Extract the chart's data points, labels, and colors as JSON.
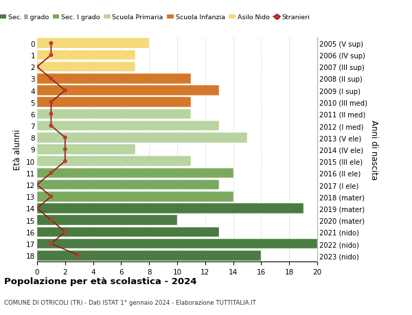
{
  "ages": [
    18,
    17,
    16,
    15,
    14,
    13,
    12,
    11,
    10,
    9,
    8,
    7,
    6,
    5,
    4,
    3,
    2,
    1,
    0
  ],
  "right_labels": [
    "2005 (V sup)",
    "2006 (IV sup)",
    "2007 (III sup)",
    "2008 (II sup)",
    "2009 (I sup)",
    "2010 (III med)",
    "2011 (II med)",
    "2012 (I med)",
    "2013 (V ele)",
    "2014 (IV ele)",
    "2015 (III ele)",
    "2016 (II ele)",
    "2017 (I ele)",
    "2018 (mater)",
    "2019 (mater)",
    "2020 (mater)",
    "2021 (nido)",
    "2022 (nido)",
    "2023 (nido)"
  ],
  "bar_values": [
    16,
    20,
    13,
    10,
    19,
    14,
    13,
    14,
    11,
    7,
    15,
    13,
    11,
    11,
    13,
    11,
    7,
    7,
    8
  ],
  "stranieri_values": [
    3,
    1,
    2,
    1,
    0,
    1,
    0,
    1,
    2,
    2,
    2,
    1,
    1,
    1,
    2,
    1,
    0,
    1,
    1
  ],
  "bar_colors": [
    "#4a7c41",
    "#4a7c41",
    "#4a7c41",
    "#4a7c41",
    "#4a7c41",
    "#7aaa5e",
    "#7aaa5e",
    "#7aaa5e",
    "#b8d4a0",
    "#b8d4a0",
    "#b8d4a0",
    "#b8d4a0",
    "#b8d4a0",
    "#d4782a",
    "#d4782a",
    "#d4782a",
    "#f5d97a",
    "#f5d97a",
    "#f5d97a"
  ],
  "legend_items": [
    {
      "label": "Sec. II grado",
      "color": "#4a7c41"
    },
    {
      "label": "Sec. I grado",
      "color": "#7aaa5e"
    },
    {
      "label": "Scuola Primaria",
      "color": "#b8d4a0"
    },
    {
      "label": "Scuola Infanzia",
      "color": "#d4782a"
    },
    {
      "label": "Asilo Nido",
      "color": "#f5d97a"
    },
    {
      "label": "Stranieri",
      "color": "#c0392b"
    }
  ],
  "ylabel_left": "Età alunni",
  "ylabel_right": "Anni di nascita",
  "title": "Popolazione per età scolastica - 2024",
  "subtitle": "COMUNE DI OTRICOLI (TR) - Dati ISTAT 1° gennaio 2024 - Elaborazione TUTTITALIA.IT",
  "xlim": [
    0,
    20
  ],
  "xticks": [
    0,
    2,
    4,
    6,
    8,
    10,
    12,
    14,
    16,
    18,
    20
  ],
  "stranieri_line_color": "#8b1a1a",
  "stranieri_dot_color": "#c0392b",
  "background_color": "#ffffff",
  "grid_color": "#cccccc"
}
